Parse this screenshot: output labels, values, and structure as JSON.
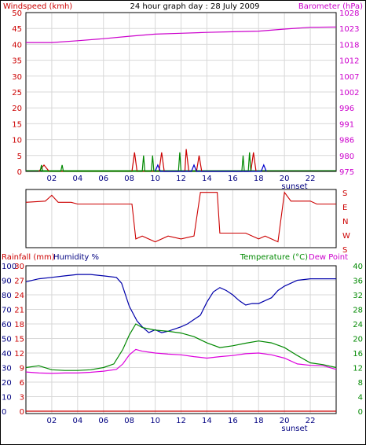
{
  "chart_data": [
    {
      "type": "line",
      "title": "24 hour graph day : 28 July 2009",
      "left_axis_label": "Windspeed (kmh)",
      "right_axis_label": "Barometer (hPa)",
      "x_ticks": [
        "02",
        "04",
        "06",
        "08",
        "10",
        "12",
        "14",
        "16",
        "18",
        "20",
        "22"
      ],
      "x_range_hours": [
        0,
        24
      ],
      "sunset_label": "sunset",
      "sunset_hour": 20.5,
      "left_ylim": [
        0,
        50
      ],
      "left_ticks": [
        "0",
        "5",
        "10",
        "15",
        "20",
        "25",
        "30",
        "35",
        "40",
        "45",
        "50"
      ],
      "right_ylim": [
        975,
        1028
      ],
      "right_ticks": [
        "975",
        "980",
        "986",
        "991",
        "996",
        "1002",
        "1007",
        "1012",
        "1018",
        "1023",
        "1028"
      ],
      "grid": true,
      "series": [
        {
          "name": "Barometer",
          "axis": "right",
          "color": "#cc00cc",
          "points": [
            [
              0,
              1018.0
            ],
            [
              2,
              1018.0
            ],
            [
              4,
              1018.6
            ],
            [
              6,
              1019.3
            ],
            [
              8,
              1020.1
            ],
            [
              10,
              1020.8
            ],
            [
              12,
              1021.1
            ],
            [
              14,
              1021.4
            ],
            [
              16,
              1021.6
            ],
            [
              18,
              1021.8
            ],
            [
              20,
              1022.5
            ],
            [
              22,
              1023.1
            ],
            [
              24,
              1023.2
            ]
          ]
        },
        {
          "name": "Windspeed gust",
          "axis": "left",
          "color": "#cc0000",
          "points": [
            [
              1.0,
              0
            ],
            [
              1.4,
              2
            ],
            [
              1.8,
              0
            ],
            [
              8.2,
              0
            ],
            [
              8.4,
              6
            ],
            [
              8.6,
              0
            ],
            [
              10.3,
              0
            ],
            [
              10.5,
              6
            ],
            [
              10.7,
              0
            ],
            [
              12.3,
              0
            ],
            [
              12.4,
              7
            ],
            [
              12.6,
              0
            ],
            [
              13.2,
              0
            ],
            [
              13.4,
              5
            ],
            [
              13.6,
              0
            ],
            [
              17.4,
              0
            ],
            [
              17.6,
              6
            ],
            [
              17.8,
              0
            ]
          ]
        },
        {
          "name": "Windspeed average",
          "axis": "left",
          "color": "#008800",
          "points": [
            [
              1.1,
              0
            ],
            [
              1.2,
              2
            ],
            [
              1.3,
              0
            ],
            [
              2.7,
              0
            ],
            [
              2.8,
              2
            ],
            [
              2.9,
              0
            ],
            [
              9.0,
              0
            ],
            [
              9.1,
              5
            ],
            [
              9.2,
              0
            ],
            [
              9.7,
              0
            ],
            [
              9.8,
              5
            ],
            [
              9.9,
              0
            ],
            [
              11.8,
              0
            ],
            [
              11.9,
              6
            ],
            [
              12.0,
              0
            ],
            [
              16.7,
              0
            ],
            [
              16.8,
              5
            ],
            [
              16.9,
              0
            ],
            [
              17.2,
              0
            ],
            [
              17.3,
              6
            ],
            [
              17.4,
              0
            ]
          ]
        },
        {
          "name": "Windspeed",
          "axis": "left",
          "color": "#0000cc",
          "points": [
            [
              10.0,
              0
            ],
            [
              10.2,
              2
            ],
            [
              10.4,
              0
            ],
            [
              12.8,
              0
            ],
            [
              13.0,
              2
            ],
            [
              13.2,
              0
            ],
            [
              18.2,
              0
            ],
            [
              18.4,
              2
            ],
            [
              18.6,
              0
            ]
          ]
        }
      ]
    },
    {
      "type": "line",
      "title": "",
      "x_range_hours": [
        0,
        24
      ],
      "right_ticks": [
        "S",
        "E",
        "N",
        "W",
        "S"
      ],
      "grid": true,
      "series": [
        {
          "name": "Wind direction",
          "color": "#cc0000",
          "points": [
            [
              0,
              0.22
            ],
            [
              1.5,
              0.2
            ],
            [
              2.0,
              0.1
            ],
            [
              2.5,
              0.22
            ],
            [
              3.5,
              0.22
            ],
            [
              4.0,
              0.25
            ],
            [
              8.2,
              0.25
            ],
            [
              8.5,
              0.85
            ],
            [
              9.0,
              0.8
            ],
            [
              10.0,
              0.9
            ],
            [
              11.0,
              0.8
            ],
            [
              12.0,
              0.85
            ],
            [
              13.0,
              0.8
            ],
            [
              13.5,
              0.05
            ],
            [
              14.8,
              0.05
            ],
            [
              15.0,
              0.75
            ],
            [
              17.0,
              0.75
            ],
            [
              18.0,
              0.85
            ],
            [
              18.5,
              0.8
            ],
            [
              19.5,
              0.9
            ],
            [
              20.0,
              0.05
            ],
            [
              20.5,
              0.2
            ],
            [
              22.0,
              0.2
            ],
            [
              22.5,
              0.25
            ],
            [
              24.0,
              0.25
            ]
          ]
        }
      ]
    },
    {
      "type": "line",
      "title": "",
      "left_axis_label_1": "Rainfall (mm)",
      "left_axis_label_2": "Humidity %",
      "right_axis_label_1": "Temperature (°C)",
      "right_axis_label_2": "Dew Point",
      "x_ticks": [
        "02",
        "04",
        "06",
        "08",
        "10",
        "12",
        "14",
        "16",
        "18",
        "20",
        "22"
      ],
      "sunset_label": "sunset",
      "sunset_hour": 20.5,
      "humidity_ticks": [
        "0",
        "10",
        "20",
        "30",
        "40",
        "50",
        "60",
        "70",
        "80",
        "90",
        "100"
      ],
      "rainfall_ticks": [
        "0",
        "3",
        "6",
        "9",
        "12",
        "15",
        "18",
        "21",
        "24",
        "27",
        "30"
      ],
      "temperature_ticks": [
        "0",
        "4",
        "8",
        "12",
        "16",
        "20",
        "24",
        "28",
        "32",
        "36",
        "40"
      ],
      "humidity_ylim": [
        0,
        100
      ],
      "temperature_ylim": [
        0,
        40
      ],
      "grid": true,
      "series": [
        {
          "name": "Humidity",
          "axis": "humidity",
          "color": "#0000aa",
          "points": [
            [
              0,
              89
            ],
            [
              1,
              91
            ],
            [
              2,
              92
            ],
            [
              3,
              93
            ],
            [
              4,
              94
            ],
            [
              5,
              94
            ],
            [
              6,
              93
            ],
            [
              7,
              92
            ],
            [
              7.4,
              88
            ],
            [
              8,
              72
            ],
            [
              8.6,
              62
            ],
            [
              9,
              58
            ],
            [
              9.5,
              54
            ],
            [
              10,
              56
            ],
            [
              10.5,
              54
            ],
            [
              11,
              55
            ],
            [
              12,
              58
            ],
            [
              12.5,
              60
            ],
            [
              13,
              63
            ],
            [
              13.5,
              66
            ],
            [
              14,
              75
            ],
            [
              14.5,
              82
            ],
            [
              15,
              85
            ],
            [
              15.5,
              83
            ],
            [
              16,
              80
            ],
            [
              16.5,
              76
            ],
            [
              17,
              73
            ],
            [
              17.5,
              74
            ],
            [
              18,
              74
            ],
            [
              19,
              78
            ],
            [
              19.5,
              83
            ],
            [
              20,
              86
            ],
            [
              21,
              90
            ],
            [
              22,
              91
            ],
            [
              24,
              91
            ]
          ]
        },
        {
          "name": "Temperature",
          "axis": "temperature",
          "color": "#008800",
          "points": [
            [
              0,
              12
            ],
            [
              1,
              12.5
            ],
            [
              2,
              11.4
            ],
            [
              3,
              11.2
            ],
            [
              4,
              11.2
            ],
            [
              5,
              11.4
            ],
            [
              6,
              12
            ],
            [
              6.8,
              13
            ],
            [
              7.5,
              17
            ],
            [
              8,
              21
            ],
            [
              8.5,
              24
            ],
            [
              9,
              23
            ],
            [
              10,
              22.3
            ],
            [
              11,
              22
            ],
            [
              12,
              21.5
            ],
            [
              13,
              20.5
            ],
            [
              14,
              18.8
            ],
            [
              15,
              17.5
            ],
            [
              16,
              18
            ],
            [
              17,
              18.7
            ],
            [
              18,
              19.3
            ],
            [
              19,
              18.8
            ],
            [
              20,
              17.5
            ],
            [
              21,
              15.3
            ],
            [
              22,
              13.3
            ],
            [
              23,
              12.8
            ],
            [
              24,
              12
            ]
          ]
        },
        {
          "name": "Dew Point",
          "axis": "temperature",
          "color": "#dd00dd",
          "points": [
            [
              0,
              10.8
            ],
            [
              1,
              10.5
            ],
            [
              2,
              10.4
            ],
            [
              3,
              10.5
            ],
            [
              4,
              10.5
            ],
            [
              5,
              10.7
            ],
            [
              6,
              11
            ],
            [
              7,
              11.5
            ],
            [
              7.5,
              13
            ],
            [
              8,
              15.5
            ],
            [
              8.5,
              17
            ],
            [
              9,
              16.5
            ],
            [
              10,
              16
            ],
            [
              11,
              15.7
            ],
            [
              12,
              15.5
            ],
            [
              13,
              15
            ],
            [
              14,
              14.6
            ],
            [
              15,
              15
            ],
            [
              16,
              15.3
            ],
            [
              17,
              15.8
            ],
            [
              18,
              16
            ],
            [
              19,
              15.5
            ],
            [
              20,
              14.6
            ],
            [
              21,
              13
            ],
            [
              22,
              12.6
            ],
            [
              23,
              12.5
            ],
            [
              24,
              11.5
            ]
          ]
        },
        {
          "name": "Rainfall",
          "axis": "rainfall",
          "color": "#cc0000",
          "points": [
            [
              0,
              0
            ],
            [
              24,
              0
            ]
          ]
        }
      ]
    }
  ]
}
